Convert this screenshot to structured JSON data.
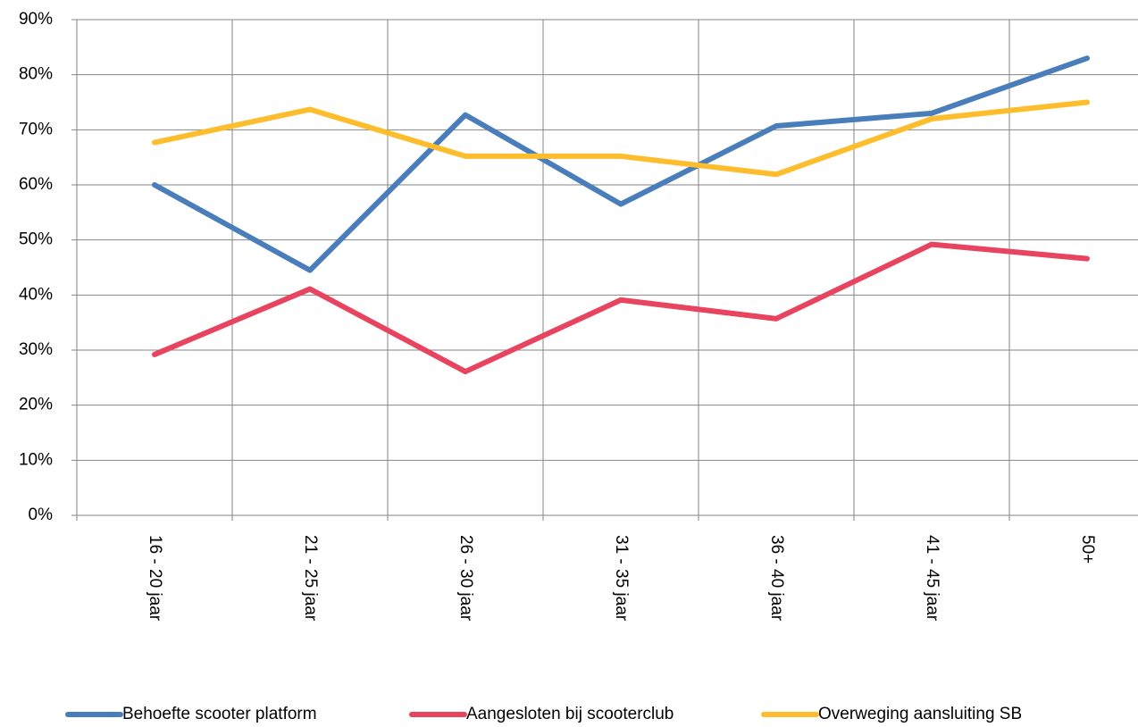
{
  "chart_data": {
    "type": "line",
    "categories": [
      "16 - 20 jaar",
      "21 - 25 jaar",
      "26 - 30 jaar",
      "31 - 35 jaar",
      "36 - 40 jaar",
      "41 - 45 jaar",
      "50+"
    ],
    "series": [
      {
        "name": "Behoefte scooter platform",
        "color": "#4a7ebb",
        "values": [
          60,
          44.5,
          72.7,
          56.5,
          70.7,
          73,
          83
        ]
      },
      {
        "name": "Aangesloten bij scooterclub",
        "color": "#e8435f",
        "values": [
          29.2,
          41.1,
          26.1,
          39.1,
          35.7,
          49.2,
          46.6
        ]
      },
      {
        "name": "Overweging aansluiting SB",
        "color": "#fdbd2c",
        "values": [
          67.7,
          73.7,
          65.2,
          65.2,
          61.9,
          72,
          75
        ]
      }
    ],
    "ylim": [
      0,
      90
    ],
    "yticks": [
      {
        "value": 0,
        "label": "0%"
      },
      {
        "value": 10,
        "label": "10%"
      },
      {
        "value": 20,
        "label": "20%"
      },
      {
        "value": 30,
        "label": "30%"
      },
      {
        "value": 40,
        "label": "40%"
      },
      {
        "value": 50,
        "label": "50%"
      },
      {
        "value": 60,
        "label": "60%"
      },
      {
        "value": 70,
        "label": "70%"
      },
      {
        "value": 80,
        "label": "80%"
      },
      {
        "value": 90,
        "label": "90%"
      }
    ],
    "grid": true,
    "legend": "bottom"
  }
}
